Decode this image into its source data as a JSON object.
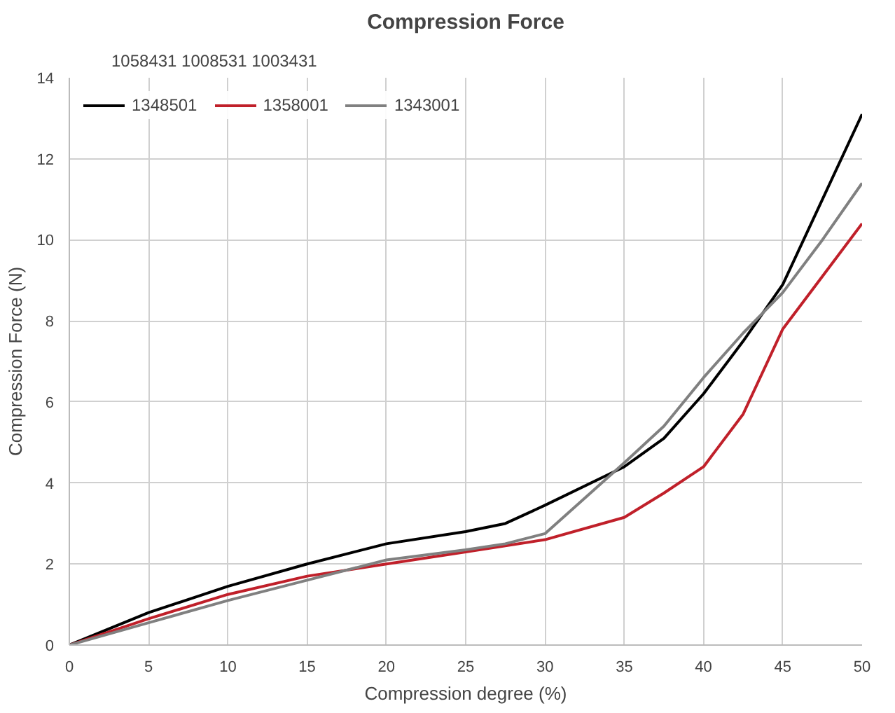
{
  "chart_data": {
    "type": "line",
    "title": "Compression Force",
    "xlabel": "Compression degree (%)",
    "ylabel": "Compression Force (N)",
    "annotations": [
      "1058431",
      "1008531",
      "1003431"
    ],
    "x": [
      0,
      5,
      10,
      15,
      20,
      25,
      27.5,
      30,
      35,
      37.5,
      40,
      42.5,
      45,
      47.5,
      50
    ],
    "xlim": [
      0,
      50
    ],
    "xticks": [
      0,
      5,
      10,
      15,
      20,
      25,
      30,
      35,
      40,
      45,
      50
    ],
    "ylim": [
      0,
      14
    ],
    "yticks": [
      0,
      2,
      4,
      6,
      8,
      10,
      12,
      14
    ],
    "grid": true,
    "legend": "top left",
    "line_style": "solid",
    "series": [
      {
        "name": "1348501",
        "color": "#000000",
        "values": [
          0,
          0.8,
          1.45,
          2.0,
          2.5,
          2.8,
          3.0,
          3.45,
          4.4,
          5.1,
          6.2,
          7.5,
          8.9,
          11.0,
          13.1
        ]
      },
      {
        "name": "1358001",
        "color": "#c0202a",
        "values": [
          0,
          0.65,
          1.25,
          1.7,
          2.0,
          2.3,
          2.45,
          2.6,
          3.15,
          3.75,
          4.4,
          5.7,
          7.8,
          9.1,
          10.4
        ]
      },
      {
        "name": "1343001",
        "color": "#808080",
        "values": [
          0,
          0.55,
          1.1,
          1.6,
          2.1,
          2.35,
          2.5,
          2.75,
          4.5,
          5.4,
          6.6,
          7.7,
          8.7,
          10.0,
          11.4
        ]
      }
    ]
  }
}
